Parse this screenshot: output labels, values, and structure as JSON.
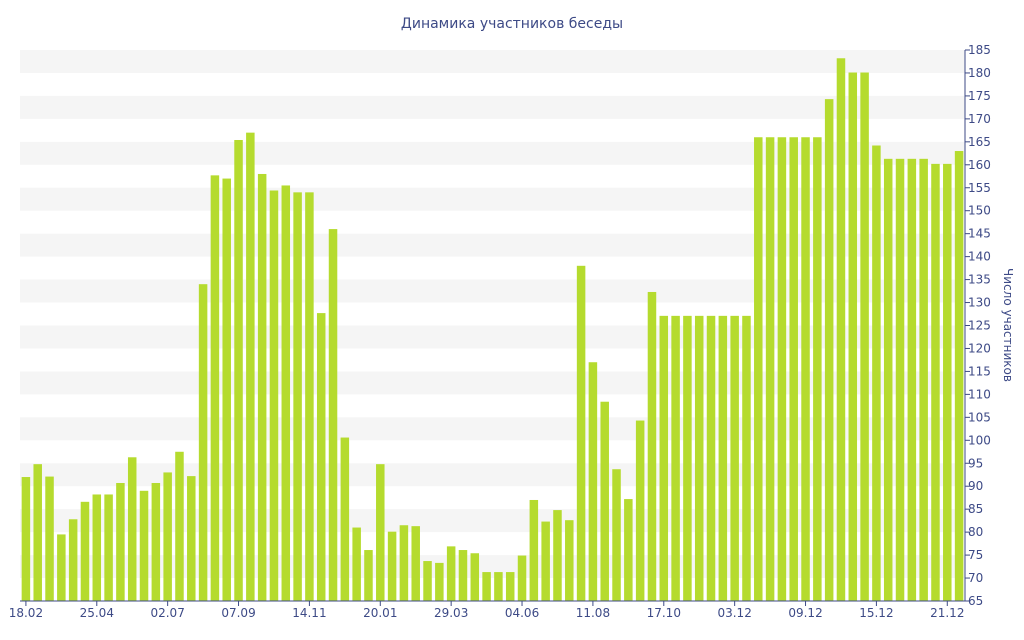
{
  "chart_data": {
    "type": "bar",
    "title": "Динамика участников беседы",
    "xlabel": "",
    "ylabel": "Число участников",
    "y_axis_side": "right",
    "ylim": [
      65,
      185
    ],
    "y_ticks": [
      65,
      70,
      75,
      80,
      85,
      90,
      95,
      100,
      105,
      110,
      115,
      120,
      125,
      130,
      135,
      140,
      145,
      150,
      155,
      160,
      165,
      170,
      175,
      180,
      185
    ],
    "x_tick_labels": [
      {
        "index": 0,
        "label": "18.02"
      },
      {
        "index": 6,
        "label": "25.04"
      },
      {
        "index": 12,
        "label": "02.07"
      },
      {
        "index": 18,
        "label": "07.09"
      },
      {
        "index": 24,
        "label": "14.11"
      },
      {
        "index": 30,
        "label": "20.01"
      },
      {
        "index": 36,
        "label": "29.03"
      },
      {
        "index": 42,
        "label": "04.06"
      },
      {
        "index": 48,
        "label": "11.08"
      },
      {
        "index": 54,
        "label": "17.10"
      },
      {
        "index": 60,
        "label": "03.12"
      },
      {
        "index": 66,
        "label": "09.12"
      },
      {
        "index": 72,
        "label": "15.12"
      },
      {
        "index": 78,
        "label": "21.12"
      }
    ],
    "grid": "alternating horizontal bands",
    "bar_color": "#b5db2e",
    "band_color": "#f5f5f5",
    "text_color": "#3d4a86",
    "values": [
      92,
      94.8,
      92.1,
      79.5,
      82.8,
      86.6,
      88.2,
      88.2,
      90.7,
      96.3,
      89,
      90.7,
      93,
      97.5,
      92.2,
      134,
      157.7,
      157,
      165.4,
      167,
      158,
      154.4,
      155.5,
      154,
      154,
      127.7,
      146,
      100.6,
      81,
      76.1,
      94.8,
      80.1,
      81.5,
      81.3,
      73.7,
      73.3,
      76.9,
      76.1,
      75.4,
      71.3,
      71.3,
      71.3,
      74.9,
      87,
      82.3,
      84.8,
      82.6,
      138,
      117,
      108.4,
      93.7,
      87.2,
      104.3,
      132.3,
      127.1,
      127.1,
      127.1,
      127.1,
      127.1,
      127.1,
      127.1,
      127.1,
      166,
      166,
      166,
      166,
      166,
      166,
      174.3,
      183.2,
      180.1,
      180.1,
      164.2,
      161.3,
      161.3,
      161.3,
      161.3,
      160.2,
      160.2,
      163
    ]
  }
}
